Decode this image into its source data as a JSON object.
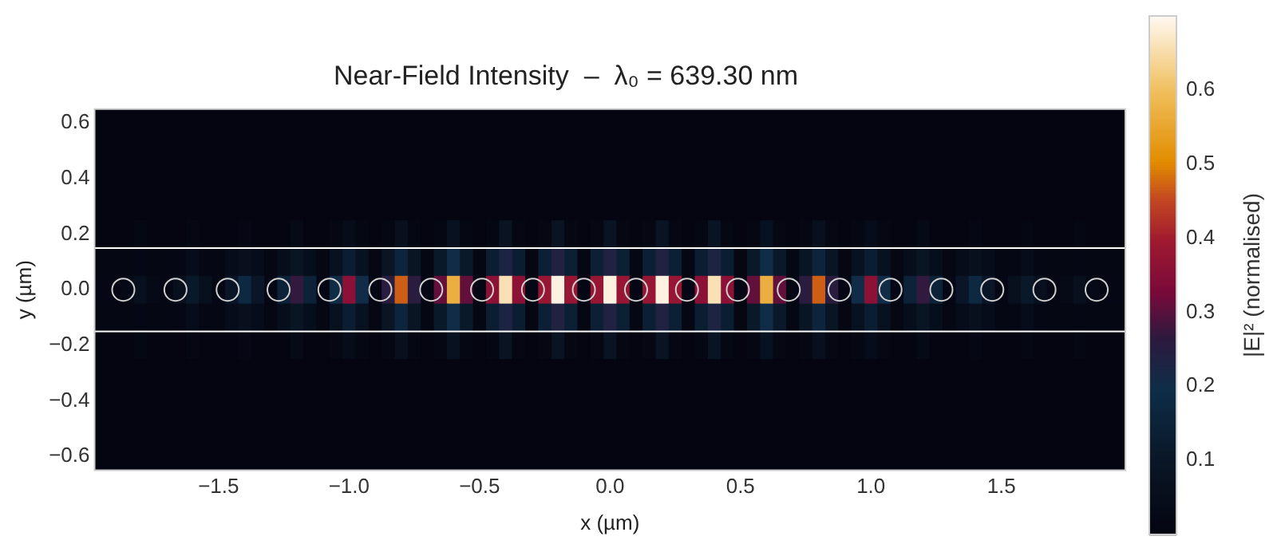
{
  "chart_data": {
    "type": "heatmap",
    "title": "Near-Field Intensity  –  λ₀ = 639.30 nm",
    "xlabel": "x (µm)",
    "ylabel": "y (µm)",
    "clabel": "|E|² (normalised)",
    "xlim": [
      -1.975,
      1.975
    ],
    "ylim": [
      -0.65,
      0.65
    ],
    "xticks": [
      {
        "value": -1.5,
        "label": "−1.5"
      },
      {
        "value": -1,
        "label": "−1.0"
      },
      {
        "value": -0.5,
        "label": "−0.5"
      },
      {
        "value": 0,
        "label": "0.0"
      },
      {
        "value": 0.5,
        "label": "0.5"
      },
      {
        "value": 1,
        "label": "1.0"
      },
      {
        "value": 1.5,
        "label": "1.5"
      }
    ],
    "yticks": [
      {
        "value": -0.6,
        "label": "−0.6"
      },
      {
        "value": -0.4,
        "label": "−0.4"
      },
      {
        "value": -0.2,
        "label": "−0.2"
      },
      {
        "value": 0,
        "label": "0.0"
      },
      {
        "value": 0.2,
        "label": "0.2"
      },
      {
        "value": 0.4,
        "label": "0.4"
      },
      {
        "value": 0.6,
        "label": "0.6"
      }
    ],
    "clim": [
      0,
      0.7
    ],
    "cticks": [
      0.1,
      0.2,
      0.3,
      0.4,
      0.5,
      0.6
    ],
    "x": [
      -1.95,
      -1.9,
      -1.85,
      -1.8,
      -1.75,
      -1.7,
      -1.65,
      -1.6,
      -1.55,
      -1.5,
      -1.45,
      -1.4,
      -1.35,
      -1.3,
      -1.25,
      -1.2,
      -1.15,
      -1.1,
      -1.05,
      -1,
      -0.95,
      -0.9,
      -0.85,
      -0.8,
      -0.75,
      -0.7,
      -0.65,
      -0.6,
      -0.55,
      -0.5,
      -0.45,
      -0.4,
      -0.35,
      -0.3,
      -0.25,
      -0.2,
      -0.15,
      -0.1,
      -0.05,
      0,
      0.05,
      0.1,
      0.15,
      0.2,
      0.25,
      0.3,
      0.35,
      0.4,
      0.45,
      0.5,
      0.55,
      0.6,
      0.65,
      0.7,
      0.75,
      0.8,
      0.85,
      0.9,
      0.95,
      1,
      1.05,
      1.1,
      1.15,
      1.2,
      1.25,
      1.3,
      1.35,
      1.4,
      1.45,
      1.5,
      1.55,
      1.6,
      1.65,
      1.7,
      1.75,
      1.8,
      1.85,
      1.9,
      1.95
    ],
    "y": [
      0.6,
      0.5,
      0.4,
      0.3,
      0.2,
      0.1,
      0,
      -0.1,
      -0.2,
      -0.3,
      -0.4,
      -0.5,
      -0.6
    ],
    "cells": [
      [
        0,
        0,
        0,
        0,
        0,
        0,
        0,
        0,
        0,
        0,
        0,
        0,
        0,
        0,
        0,
        0,
        0,
        0,
        0,
        0,
        0,
        0,
        0,
        0,
        0,
        0,
        0,
        0,
        0,
        0,
        0,
        0,
        0,
        0,
        0,
        0,
        0,
        0,
        0,
        0,
        0,
        0,
        0,
        0,
        0,
        0,
        0,
        0,
        0,
        0,
        0,
        0,
        0,
        0,
        0,
        0,
        0,
        0,
        0,
        0,
        0,
        0,
        0,
        0,
        0,
        0,
        0,
        0,
        0,
        0,
        0,
        0,
        0,
        0,
        0,
        0,
        0,
        0,
        0
      ],
      [
        0,
        0,
        0,
        0,
        0,
        0,
        0,
        0,
        0,
        0,
        0,
        0,
        0,
        0,
        0,
        0,
        0,
        0,
        0,
        0,
        0,
        0,
        0,
        0,
        0,
        0,
        0,
        0,
        0,
        0,
        0,
        0,
        0,
        0,
        0,
        0,
        0,
        0,
        0,
        0,
        0,
        0,
        0,
        0,
        0,
        0,
        0,
        0,
        0,
        0,
        0,
        0,
        0,
        0,
        0,
        0,
        0,
        0,
        0,
        0,
        0,
        0,
        0,
        0,
        0,
        0,
        0,
        0,
        0,
        0,
        0,
        0,
        0,
        0,
        0,
        0,
        0,
        0,
        0
      ],
      [
        0,
        0,
        0,
        0,
        0,
        0,
        0,
        0,
        0,
        0,
        0,
        0,
        0,
        0,
        0,
        0,
        0,
        0,
        0,
        0,
        0,
        0,
        0,
        0,
        0,
        0,
        0,
        0,
        0,
        0,
        0,
        0,
        0,
        0,
        0,
        0,
        0,
        0,
        0,
        0,
        0,
        0,
        0,
        0,
        0,
        0,
        0,
        0,
        0,
        0,
        0,
        0,
        0,
        0,
        0,
        0,
        0,
        0,
        0,
        0,
        0,
        0,
        0,
        0,
        0,
        0,
        0,
        0,
        0,
        0,
        0,
        0,
        0,
        0,
        0,
        0,
        0,
        0,
        0
      ],
      [
        0,
        0,
        0,
        0,
        0,
        0,
        0,
        0,
        0,
        0,
        0,
        0,
        0,
        0,
        0,
        0,
        0,
        0,
        0,
        0,
        0,
        0,
        0,
        0,
        0,
        0,
        0,
        0,
        0,
        0,
        0,
        0,
        0,
        0,
        0,
        0,
        0,
        0,
        0,
        0,
        0,
        0,
        0,
        0,
        0,
        0,
        0,
        0,
        0,
        0,
        0,
        0,
        0,
        0,
        0,
        0,
        0,
        0,
        0,
        0,
        0,
        0,
        0,
        0,
        0,
        0,
        0,
        0,
        0,
        0,
        0,
        0,
        0,
        0,
        0,
        0,
        0,
        0,
        0
      ],
      [
        0,
        0,
        0,
        0.01,
        0,
        0,
        0,
        0.01,
        0,
        0,
        0,
        0.02,
        0,
        0,
        0,
        0.03,
        0,
        0,
        0.01,
        0.04,
        0.01,
        0,
        0.01,
        0.06,
        0.01,
        0,
        0.01,
        0.07,
        0.01,
        0,
        0.01,
        0.08,
        0.01,
        0,
        0.01,
        0.08,
        0.01,
        0,
        0.01,
        0.08,
        0.01,
        0,
        0.01,
        0.08,
        0.01,
        0,
        0.01,
        0.08,
        0.01,
        0,
        0.01,
        0.07,
        0.01,
        0,
        0.01,
        0.06,
        0.01,
        0,
        0.01,
        0.04,
        0.01,
        0,
        0,
        0.03,
        0,
        0,
        0,
        0.02,
        0,
        0,
        0,
        0.01,
        0,
        0,
        0,
        0.01,
        0,
        0,
        0
      ],
      [
        0.01,
        0.01,
        0.01,
        0.02,
        0.01,
        0.01,
        0.02,
        0.04,
        0.02,
        0.01,
        0.04,
        0.06,
        0.04,
        0.01,
        0.05,
        0.09,
        0.05,
        0.01,
        0.07,
        0.13,
        0.07,
        0.01,
        0.09,
        0.16,
        0.09,
        0.01,
        0.11,
        0.2,
        0.11,
        0.01,
        0.13,
        0.23,
        0.13,
        0.01,
        0.14,
        0.24,
        0.14,
        0.01,
        0.14,
        0.24,
        0.14,
        0.01,
        0.14,
        0.24,
        0.14,
        0.01,
        0.13,
        0.23,
        0.13,
        0.01,
        0.11,
        0.2,
        0.11,
        0.01,
        0.09,
        0.16,
        0.09,
        0.01,
        0.07,
        0.13,
        0.07,
        0.01,
        0.05,
        0.09,
        0.05,
        0.01,
        0.04,
        0.06,
        0.04,
        0.01,
        0.02,
        0.04,
        0.02,
        0.01,
        0.01,
        0.02,
        0.01,
        0.01,
        0.01
      ],
      [
        0.02,
        0.02,
        0.03,
        0.06,
        0.03,
        0.02,
        0.06,
        0.11,
        0.06,
        0.02,
        0.1,
        0.18,
        0.1,
        0.02,
        0.15,
        0.27,
        0.15,
        0.02,
        0.2,
        0.36,
        0.2,
        0.02,
        0.26,
        0.47,
        0.26,
        0.02,
        0.31,
        0.57,
        0.31,
        0.02,
        0.36,
        0.66,
        0.36,
        0.02,
        0.38,
        0.69,
        0.38,
        0.02,
        0.38,
        0.69,
        0.38,
        0.02,
        0.38,
        0.69,
        0.38,
        0.02,
        0.36,
        0.66,
        0.36,
        0.02,
        0.31,
        0.57,
        0.31,
        0.02,
        0.26,
        0.47,
        0.26,
        0.02,
        0.2,
        0.36,
        0.2,
        0.02,
        0.15,
        0.27,
        0.15,
        0.02,
        0.1,
        0.18,
        0.1,
        0.02,
        0.06,
        0.11,
        0.06,
        0.02,
        0.03,
        0.06,
        0.03,
        0.02,
        0.02
      ],
      [
        0.01,
        0.01,
        0.01,
        0.02,
        0.01,
        0.01,
        0.02,
        0.04,
        0.02,
        0.01,
        0.04,
        0.06,
        0.04,
        0.01,
        0.05,
        0.09,
        0.05,
        0.01,
        0.07,
        0.13,
        0.07,
        0.01,
        0.09,
        0.16,
        0.09,
        0.01,
        0.11,
        0.2,
        0.11,
        0.01,
        0.13,
        0.23,
        0.13,
        0.01,
        0.14,
        0.24,
        0.14,
        0.01,
        0.14,
        0.24,
        0.14,
        0.01,
        0.14,
        0.24,
        0.14,
        0.01,
        0.13,
        0.23,
        0.13,
        0.01,
        0.11,
        0.2,
        0.11,
        0.01,
        0.09,
        0.16,
        0.09,
        0.01,
        0.07,
        0.13,
        0.07,
        0.01,
        0.05,
        0.09,
        0.05,
        0.01,
        0.04,
        0.06,
        0.04,
        0.01,
        0.02,
        0.04,
        0.02,
        0.01,
        0.01,
        0.02,
        0.01,
        0.01,
        0.01
      ],
      [
        0,
        0,
        0,
        0.01,
        0,
        0,
        0,
        0.01,
        0,
        0,
        0,
        0.02,
        0,
        0,
        0,
        0.03,
        0,
        0,
        0.01,
        0.04,
        0.01,
        0,
        0.01,
        0.06,
        0.01,
        0,
        0.01,
        0.07,
        0.01,
        0,
        0.01,
        0.08,
        0.01,
        0,
        0.01,
        0.08,
        0.01,
        0,
        0.01,
        0.08,
        0.01,
        0,
        0.01,
        0.08,
        0.01,
        0,
        0.01,
        0.08,
        0.01,
        0,
        0.01,
        0.07,
        0.01,
        0,
        0.01,
        0.06,
        0.01,
        0,
        0.01,
        0.04,
        0.01,
        0,
        0,
        0.03,
        0,
        0,
        0,
        0.02,
        0,
        0,
        0,
        0.01,
        0,
        0,
        0,
        0.01,
        0,
        0,
        0
      ],
      [
        0,
        0,
        0,
        0,
        0,
        0,
        0,
        0,
        0,
        0,
        0,
        0,
        0,
        0,
        0,
        0,
        0,
        0,
        0,
        0,
        0,
        0,
        0,
        0,
        0,
        0,
        0,
        0,
        0,
        0,
        0,
        0,
        0,
        0,
        0,
        0,
        0,
        0,
        0,
        0,
        0,
        0,
        0,
        0,
        0,
        0,
        0,
        0,
        0,
        0,
        0,
        0,
        0,
        0,
        0,
        0,
        0,
        0,
        0,
        0,
        0,
        0,
        0,
        0,
        0,
        0,
        0,
        0,
        0,
        0,
        0,
        0,
        0,
        0,
        0,
        0,
        0,
        0,
        0
      ],
      [
        0,
        0,
        0,
        0,
        0,
        0,
        0,
        0,
        0,
        0,
        0,
        0,
        0,
        0,
        0,
        0,
        0,
        0,
        0,
        0,
        0,
        0,
        0,
        0,
        0,
        0,
        0,
        0,
        0,
        0,
        0,
        0,
        0,
        0,
        0,
        0,
        0,
        0,
        0,
        0,
        0,
        0,
        0,
        0,
        0,
        0,
        0,
        0,
        0,
        0,
        0,
        0,
        0,
        0,
        0,
        0,
        0,
        0,
        0,
        0,
        0,
        0,
        0,
        0,
        0,
        0,
        0,
        0,
        0,
        0,
        0,
        0,
        0,
        0,
        0,
        0,
        0,
        0,
        0
      ],
      [
        0,
        0,
        0,
        0,
        0,
        0,
        0,
        0,
        0,
        0,
        0,
        0,
        0,
        0,
        0,
        0,
        0,
        0,
        0,
        0,
        0,
        0,
        0,
        0,
        0,
        0,
        0,
        0,
        0,
        0,
        0,
        0,
        0,
        0,
        0,
        0,
        0,
        0,
        0,
        0,
        0,
        0,
        0,
        0,
        0,
        0,
        0,
        0,
        0,
        0,
        0,
        0,
        0,
        0,
        0,
        0,
        0,
        0,
        0,
        0,
        0,
        0,
        0,
        0,
        0,
        0,
        0,
        0,
        0,
        0,
        0,
        0,
        0,
        0,
        0,
        0,
        0,
        0,
        0
      ],
      [
        0,
        0,
        0,
        0,
        0,
        0,
        0,
        0,
        0,
        0,
        0,
        0,
        0,
        0,
        0,
        0,
        0,
        0,
        0,
        0,
        0,
        0,
        0,
        0,
        0,
        0,
        0,
        0,
        0,
        0,
        0,
        0,
        0,
        0,
        0,
        0,
        0,
        0,
        0,
        0,
        0,
        0,
        0,
        0,
        0,
        0,
        0,
        0,
        0,
        0,
        0,
        0,
        0,
        0,
        0,
        0,
        0,
        0,
        0,
        0,
        0,
        0,
        0,
        0,
        0,
        0,
        0,
        0,
        0,
        0,
        0,
        0,
        0,
        0,
        0,
        0,
        0,
        0,
        0
      ]
    ],
    "series": [
      {
        "type": "scatter",
        "color": "#d0d0d0",
        "x": [
          -1.865,
          -1.665,
          -1.465,
          -1.27,
          -1.075,
          -0.88,
          -0.685,
          -0.49,
          -0.295,
          -0.1,
          0.1,
          0.295,
          0.49,
          0.685,
          0.88,
          1.075,
          1.27,
          1.465,
          1.665,
          1.865
        ],
        "values": [
          0,
          0,
          0,
          0,
          0,
          0,
          0,
          0,
          0,
          0,
          0,
          0,
          0,
          0,
          0,
          0,
          0,
          0,
          0,
          0
        ]
      }
    ],
    "marker": "circle",
    "ref_lines": [
      {
        "axis": "y",
        "value": 0.15,
        "color": "#ffffff"
      },
      {
        "axis": "y",
        "value": -0.15,
        "color": "#ffffff"
      }
    ]
  }
}
